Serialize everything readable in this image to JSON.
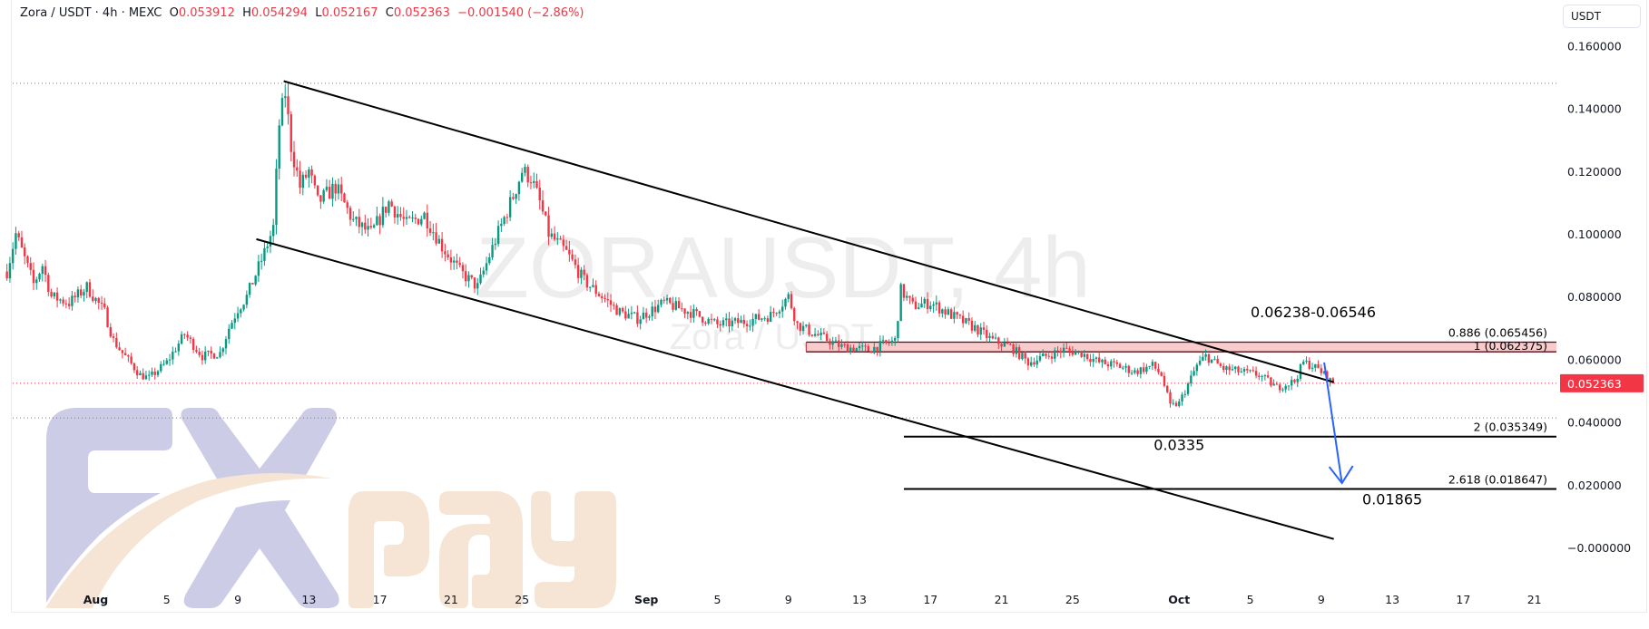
{
  "header": {
    "symbol": "Zora / USDT · 4h · MEXC",
    "open_label": "O",
    "open": "0.053912",
    "high_label": "H",
    "high": "0.054294",
    "low_label": "L",
    "low": "0.052167",
    "close_label": "C",
    "close": "0.052363",
    "change": "−0.001540 (−2.86%)"
  },
  "currency_button": "USDT",
  "watermark": {
    "title": "ZORAUSDT, 4h",
    "subtitle": "Zora / USDT"
  },
  "logo": {
    "text": "FXpay",
    "colors": {
      "fx": "#cccce6",
      "pay": "#f6e5d4"
    }
  },
  "colors": {
    "up": "#089981",
    "down": "#f23645",
    "arrow": "#2962ff",
    "zone": "#f7c5c8",
    "last_price_bg": "#f23645"
  },
  "chart_data": {
    "type": "candlestick",
    "symbol": "ZORAUSDT",
    "interval": "4h",
    "yaxis": {
      "unit": "USDT",
      "ticks": [
        "0.160000",
        "0.140000",
        "0.120000",
        "0.100000",
        "0.080000",
        "0.060000",
        "0.040000",
        "0.020000",
        "−0.000000"
      ],
      "tick_values": [
        0.16,
        0.14,
        0.12,
        0.1,
        0.08,
        0.06,
        0.04,
        0.02,
        0
      ],
      "range": [
        -0.012,
        0.175
      ]
    },
    "xaxis": {
      "ticks": [
        {
          "label": "Aug",
          "date": "08-01",
          "month": true
        },
        {
          "label": "5",
          "date": "08-05"
        },
        {
          "label": "9",
          "date": "08-09"
        },
        {
          "label": "13",
          "date": "08-13"
        },
        {
          "label": "17",
          "date": "08-17"
        },
        {
          "label": "21",
          "date": "08-21"
        },
        {
          "label": "25",
          "date": "08-25"
        },
        {
          "label": "Sep",
          "date": "09-01",
          "month": true
        },
        {
          "label": "5",
          "date": "09-05"
        },
        {
          "label": "9",
          "date": "09-09"
        },
        {
          "label": "13",
          "date": "09-13"
        },
        {
          "label": "17",
          "date": "09-17"
        },
        {
          "label": "21",
          "date": "09-21"
        },
        {
          "label": "25",
          "date": "09-25"
        },
        {
          "label": "Oct",
          "date": "10-01",
          "month": true
        },
        {
          "label": "5",
          "date": "10-05"
        },
        {
          "label": "9",
          "date": "10-09"
        },
        {
          "label": "13",
          "date": "10-13"
        },
        {
          "label": "17",
          "date": "10-17"
        },
        {
          "label": "21",
          "date": "10-21"
        }
      ]
    },
    "last_price": "0.052363",
    "last_candle": {
      "open": 0.053912,
      "high": 0.054294,
      "low": 0.052167,
      "close": 0.052363
    },
    "approx_close_path": [
      [
        "07-27 00",
        0.088
      ],
      [
        "07-27 12",
        0.1
      ],
      [
        "07-28 00",
        0.092
      ],
      [
        "07-28 12",
        0.084
      ],
      [
        "07-29 00",
        0.09
      ],
      [
        "07-29 12",
        0.08
      ],
      [
        "07-30 12",
        0.078
      ],
      [
        "07-31 12",
        0.083
      ],
      [
        "08-01 12",
        0.075
      ],
      [
        "08-02 00",
        0.066
      ],
      [
        "08-02 12",
        0.062
      ],
      [
        "08-03 12",
        0.055
      ],
      [
        "08-04 00",
        0.054
      ],
      [
        "08-05 00",
        0.059
      ],
      [
        "08-06 00",
        0.068
      ],
      [
        "08-07 00",
        0.061
      ],
      [
        "08-08 00",
        0.062
      ],
      [
        "08-08 12",
        0.07
      ],
      [
        "08-09 00",
        0.076
      ],
      [
        "08-09 12",
        0.08
      ],
      [
        "08-10 00",
        0.087
      ],
      [
        "08-10 12",
        0.094
      ],
      [
        "08-11 00",
        0.102
      ],
      [
        "08-11 08",
        0.135
      ],
      [
        "08-11 16",
        0.145
      ],
      [
        "08-12 00",
        0.128
      ],
      [
        "08-12 12",
        0.115
      ],
      [
        "08-13 00",
        0.12
      ],
      [
        "08-13 12",
        0.11
      ],
      [
        "08-14 12",
        0.115
      ],
      [
        "08-15 12",
        0.104
      ],
      [
        "08-16 12",
        0.1
      ],
      [
        "08-17 12",
        0.11
      ],
      [
        "08-18 12",
        0.103
      ],
      [
        "08-19 12",
        0.106
      ],
      [
        "08-20 12",
        0.096
      ],
      [
        "08-21 12",
        0.088
      ],
      [
        "08-22 12",
        0.083
      ],
      [
        "08-23 12",
        0.098
      ],
      [
        "08-24 12",
        0.112
      ],
      [
        "08-25 00",
        0.12
      ],
      [
        "08-25 12",
        0.118
      ],
      [
        "08-26 00",
        0.11
      ],
      [
        "08-26 12",
        0.1
      ],
      [
        "08-27 12",
        0.094
      ],
      [
        "08-28 12",
        0.085
      ],
      [
        "08-29 12",
        0.08
      ],
      [
        "08-30 12",
        0.075
      ],
      [
        "08-31 12",
        0.073
      ],
      [
        "09-02 00",
        0.078
      ],
      [
        "09-03 12",
        0.075
      ],
      [
        "09-05 00",
        0.071
      ],
      [
        "09-06 12",
        0.072
      ],
      [
        "09-08 00",
        0.074
      ],
      [
        "09-09 00",
        0.08
      ],
      [
        "09-09 12",
        0.071
      ],
      [
        "09-10 12",
        0.068
      ],
      [
        "09-12 00",
        0.064
      ],
      [
        "09-13 12",
        0.063
      ],
      [
        "09-14 12",
        0.065
      ],
      [
        "09-15 00",
        0.066
      ],
      [
        "09-15 08",
        0.082
      ],
      [
        "09-16 00",
        0.077
      ],
      [
        "09-17 00",
        0.078
      ],
      [
        "09-18 12",
        0.073
      ],
      [
        "09-19 12",
        0.07
      ],
      [
        "09-20 12",
        0.066
      ],
      [
        "09-21 12",
        0.064
      ],
      [
        "09-22 12",
        0.059
      ],
      [
        "09-23 12",
        0.061
      ],
      [
        "09-24 12",
        0.063
      ],
      [
        "09-25 12",
        0.062
      ],
      [
        "09-26 12",
        0.059
      ],
      [
        "09-27 12",
        0.058
      ],
      [
        "09-28 12",
        0.056
      ],
      [
        "09-29 12",
        0.058
      ],
      [
        "09-30 00",
        0.055
      ],
      [
        "09-30 12",
        0.045
      ],
      [
        "10-01 00",
        0.046
      ],
      [
        "10-01 12",
        0.052
      ],
      [
        "10-02 00",
        0.058
      ],
      [
        "10-02 12",
        0.061
      ],
      [
        "10-03 12",
        0.057
      ],
      [
        "10-04 12",
        0.056
      ],
      [
        "10-05 12",
        0.055
      ],
      [
        "10-06 12",
        0.051
      ],
      [
        "10-07 12",
        0.053
      ],
      [
        "10-08 00",
        0.059
      ],
      [
        "10-08 12",
        0.058
      ],
      [
        "10-09 00",
        0.056
      ],
      [
        "10-09 08",
        0.054
      ],
      [
        "10-09 16",
        0.052363
      ]
    ],
    "drawings": {
      "channel_upper": [
        [
          "08-11 14",
          0.1487
        ],
        [
          "10-09 17",
          0.0527
        ]
      ],
      "channel_lower": [
        [
          "08-10 01",
          0.0983
        ],
        [
          "10-09 17",
          0.0027
        ]
      ],
      "high_line": 0.148,
      "low_line": 0.0413,
      "zone": {
        "from": "09-10 00",
        "low": 0.06238,
        "high": 0.06546,
        "label": "0.06238-0.06546"
      },
      "fib_from": "09-15 12",
      "fib_levels": [
        {
          "label": "0.886 (0.065456)",
          "value": 0.065456,
          "line": false
        },
        {
          "label": "1 (0.062375)",
          "value": 0.062375,
          "line": false
        },
        {
          "label": "2 (0.035349)",
          "value": 0.035349,
          "line": true
        },
        {
          "label": "2.618 (0.018647)",
          "value": 0.018647,
          "line": true
        }
      ],
      "targets": [
        {
          "label": "0.0335",
          "date": "10-01 00",
          "value": 0.0311
        },
        {
          "label": "0.01865",
          "date": "10-13 00",
          "value": 0.0138
        }
      ],
      "arrow": [
        [
          "10-09 04",
          0.059
        ],
        [
          "10-10 04",
          0.0205
        ]
      ]
    }
  }
}
